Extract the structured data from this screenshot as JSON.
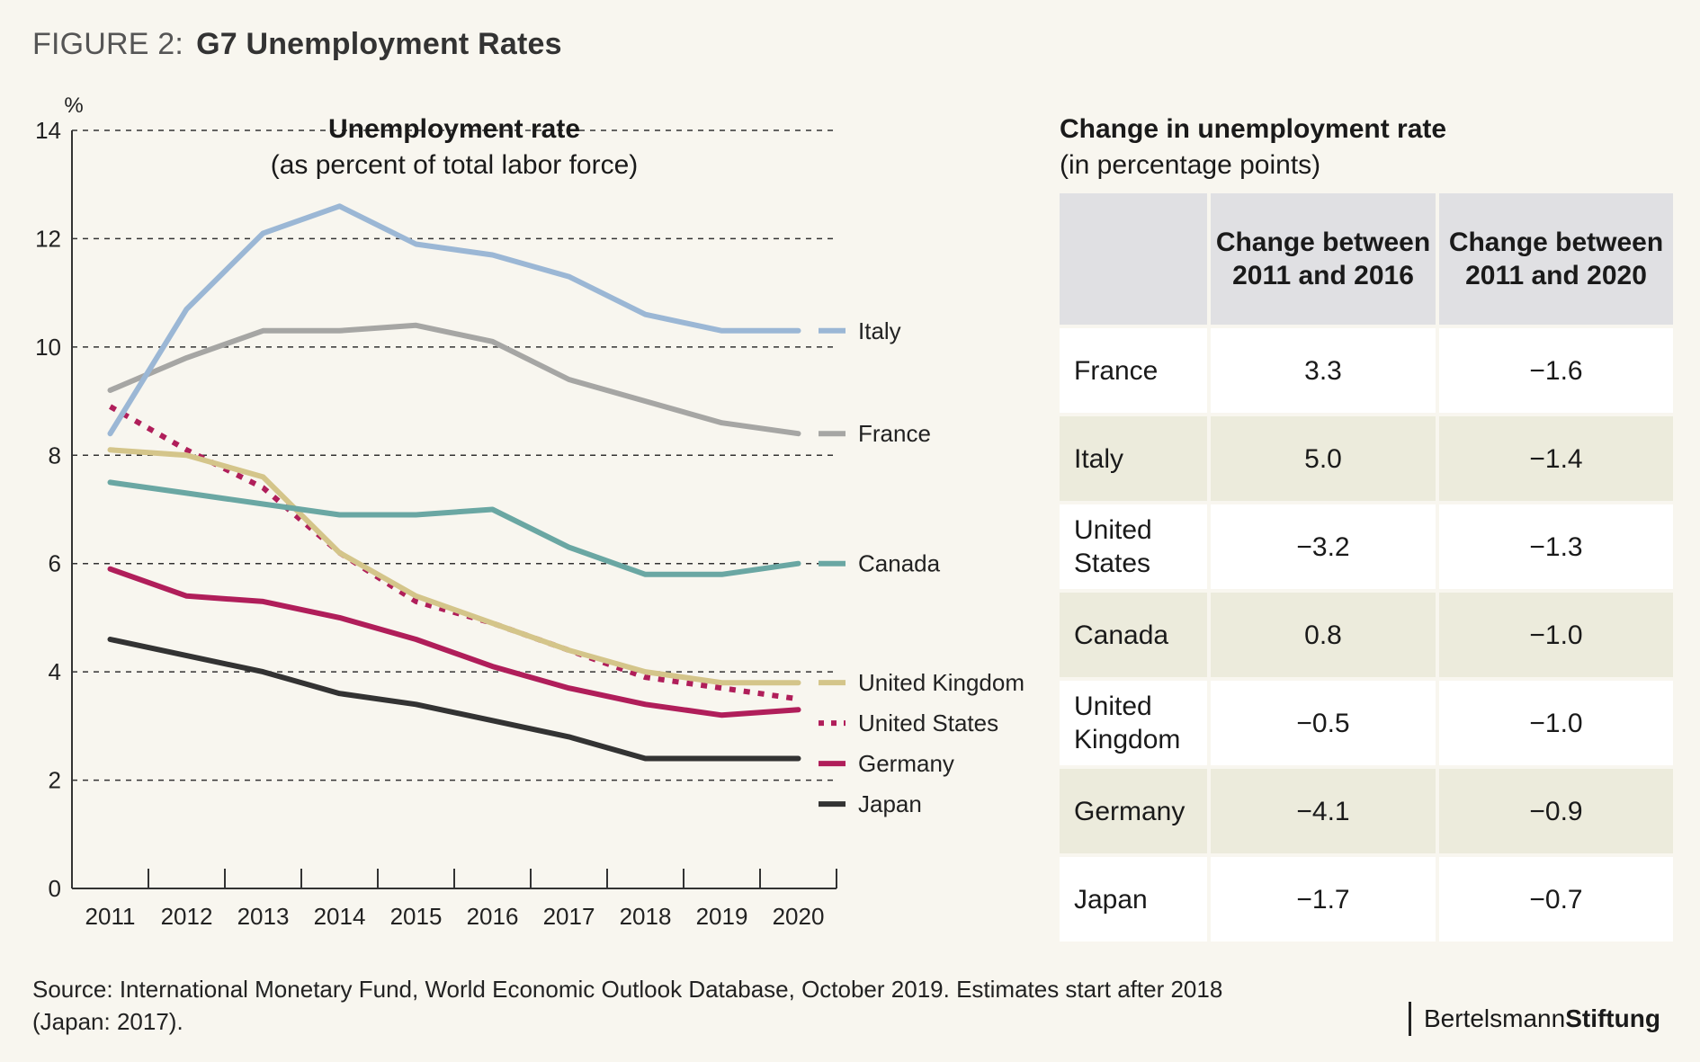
{
  "figure": {
    "prefix": "FIGURE 2:",
    "title": "G7 Unemployment Rates"
  },
  "chart_title": "Unemployment rate",
  "chart_subtitle": "(as percent of total labor force)",
  "chart_data": {
    "type": "line",
    "ylabel": "%",
    "ylim": [
      0,
      14
    ],
    "yticks": [
      0,
      2,
      4,
      6,
      8,
      10,
      12,
      14
    ],
    "x": [
      "2011",
      "2012",
      "2013",
      "2014",
      "2015",
      "2016",
      "2017",
      "2018",
      "2019",
      "2020"
    ],
    "grid": "horizontal dashed at 2, 4, 6, 8, 10, 12, 14",
    "legend": "right, labels next to line ends",
    "series": [
      {
        "name": "Italy",
        "color": "#9bb7d5",
        "style": "solid",
        "values": [
          8.4,
          10.7,
          12.1,
          12.6,
          11.9,
          11.7,
          11.3,
          10.6,
          10.3,
          10.3
        ]
      },
      {
        "name": "France",
        "color": "#a6a6a4",
        "style": "solid",
        "values": [
          9.2,
          9.8,
          10.3,
          10.3,
          10.4,
          10.1,
          9.4,
          9.0,
          8.6,
          8.4
        ]
      },
      {
        "name": "Canada",
        "color": "#6aa7a3",
        "style": "solid",
        "values": [
          7.5,
          7.3,
          7.1,
          6.9,
          6.9,
          7.0,
          6.3,
          5.8,
          5.8,
          6.0
        ]
      },
      {
        "name": "United Kingdom",
        "color": "#d4c58a",
        "style": "solid",
        "values": [
          8.1,
          8.0,
          7.6,
          6.2,
          5.4,
          4.9,
          4.4,
          4.0,
          3.8,
          3.8
        ]
      },
      {
        "name": "United States",
        "color": "#b01e5a",
        "style": "dotted",
        "values": [
          8.9,
          8.1,
          7.4,
          6.2,
          5.3,
          4.9,
          4.4,
          3.9,
          3.7,
          3.5
        ]
      },
      {
        "name": "Germany",
        "color": "#b01e5a",
        "style": "solid",
        "values": [
          5.9,
          5.4,
          5.3,
          5.0,
          4.6,
          4.1,
          3.7,
          3.4,
          3.2,
          3.3
        ]
      },
      {
        "name": "Japan",
        "color": "#333333",
        "style": "solid",
        "values": [
          4.6,
          4.3,
          4.0,
          3.6,
          3.4,
          3.1,
          2.8,
          2.4,
          2.4,
          2.4
        ]
      }
    ]
  },
  "table": {
    "title": "Change in unemployment rate",
    "subtitle": "(in percentage points)",
    "col1": "Change between 2011 and 2016",
    "col2": "Change between 2011 and 2020",
    "rows": [
      {
        "country": "France",
        "c2016": "3.3",
        "c2020": "−1.6"
      },
      {
        "country": "Italy",
        "c2016": "5.0",
        "c2020": "−1.4"
      },
      {
        "country": "United States",
        "c2016": "−3.2",
        "c2020": "−1.3"
      },
      {
        "country": "Canada",
        "c2016": "0.8",
        "c2020": "−1.0"
      },
      {
        "country": "United Kingdom",
        "c2016": "−0.5",
        "c2020": "−1.0"
      },
      {
        "country": "Germany",
        "c2016": "−4.1",
        "c2020": "−0.9"
      },
      {
        "country": "Japan",
        "c2016": "−1.7",
        "c2020": "−0.7"
      }
    ]
  },
  "source": "Source: International Monetary Fund, World Economic Outlook Database, October 2019. Estimates start after 2018 (Japan: 2017).",
  "brand": {
    "part1": "Bertelsmann",
    "part2": "Stiftung"
  }
}
